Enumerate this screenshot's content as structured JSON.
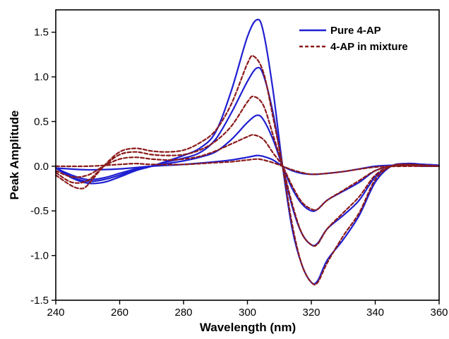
{
  "chart_data": {
    "type": "line",
    "xlabel": "Wavelength (nm)",
    "ylabel": "Peak Amplitude",
    "xlim": [
      240,
      360
    ],
    "ylim": [
      -1.5,
      1.75
    ],
    "xticks": [
      240,
      260,
      280,
      300,
      320,
      340,
      360
    ],
    "yticks": [
      -1.5,
      -1.0,
      -0.5,
      0.0,
      0.5,
      1.0,
      1.5
    ],
    "ytick_labels": [
      "-1.5",
      "-1.0",
      "-0.5",
      "0.0",
      "0.5",
      "1.0",
      "1.5"
    ],
    "grid": false,
    "legend_position": "top-right",
    "legend": [
      {
        "label": "Pure 4-AP",
        "color": "#1f1fd1",
        "style": "solid"
      },
      {
        "label": "4-AP in mixture",
        "color": "#8b1a1a",
        "style": "dashed"
      }
    ],
    "series": [
      {
        "group": "Pure 4-AP",
        "color": "#1f1fd1",
        "style": "solid",
        "x": [
          240,
          250,
          260,
          270,
          280,
          290,
          295,
          300,
          303,
          305,
          308,
          311,
          314,
          317,
          320,
          322,
          325,
          330,
          335,
          340,
          345,
          350,
          355,
          360
        ],
        "y": [
          -0.02,
          -0.04,
          -0.03,
          0.0,
          0.02,
          0.05,
          0.07,
          0.1,
          0.12,
          0.11,
          0.07,
          0.0,
          -0.05,
          -0.08,
          -0.09,
          -0.09,
          -0.08,
          -0.06,
          -0.03,
          0.0,
          0.01,
          0.01,
          0.0,
          0.0
        ]
      },
      {
        "group": "Pure 4-AP",
        "color": "#1f1fd1",
        "style": "solid",
        "x": [
          240,
          245,
          250,
          255,
          260,
          265,
          270,
          275,
          280,
          285,
          290,
          295,
          300,
          303,
          305,
          308,
          311,
          314,
          317,
          320,
          322,
          325,
          330,
          335,
          340,
          345,
          350,
          355,
          360
        ],
        "y": [
          -0.02,
          -0.1,
          -0.15,
          -0.13,
          -0.08,
          -0.03,
          0.0,
          0.03,
          0.06,
          0.1,
          0.16,
          0.3,
          0.49,
          0.57,
          0.52,
          0.3,
          0.0,
          -0.25,
          -0.42,
          -0.5,
          -0.48,
          -0.38,
          -0.28,
          -0.18,
          -0.05,
          0.0,
          0.02,
          0.02,
          0.01
        ]
      },
      {
        "group": "Pure 4-AP",
        "color": "#1f1fd1",
        "style": "solid",
        "x": [
          240,
          245,
          250,
          255,
          260,
          265,
          270,
          275,
          280,
          285,
          290,
          295,
          300,
          303,
          305,
          308,
          311,
          314,
          317,
          320,
          322,
          325,
          330,
          335,
          340,
          345,
          350,
          355,
          360
        ],
        "y": [
          -0.02,
          -0.12,
          -0.17,
          -0.15,
          -0.1,
          -0.04,
          0.0,
          0.05,
          0.09,
          0.15,
          0.3,
          0.6,
          0.95,
          1.1,
          1.02,
          0.6,
          0.0,
          -0.45,
          -0.75,
          -0.88,
          -0.86,
          -0.7,
          -0.55,
          -0.38,
          -0.12,
          0.0,
          0.03,
          0.02,
          0.01
        ]
      },
      {
        "group": "Pure 4-AP",
        "color": "#1f1fd1",
        "style": "solid",
        "x": [
          240,
          245,
          250,
          255,
          260,
          265,
          270,
          275,
          280,
          285,
          290,
          295,
          300,
          303,
          305,
          308,
          311,
          314,
          317,
          320,
          322,
          325,
          330,
          335,
          340,
          345,
          350,
          355,
          360
        ],
        "y": [
          -0.02,
          -0.13,
          -0.19,
          -0.18,
          -0.12,
          -0.05,
          0.0,
          0.06,
          0.12,
          0.2,
          0.38,
          0.85,
          1.45,
          1.64,
          1.5,
          0.85,
          0.0,
          -0.7,
          -1.1,
          -1.3,
          -1.28,
          -1.05,
          -0.82,
          -0.55,
          -0.18,
          0.0,
          0.03,
          0.02,
          0.01
        ]
      },
      {
        "group": "4-AP in mixture",
        "color": "#8b1a1a",
        "style": "dashed",
        "x": [
          240,
          250,
          260,
          265,
          270,
          280,
          290,
          295,
          300,
          303,
          305,
          308,
          311,
          314,
          317,
          320,
          325,
          330,
          340,
          350,
          360
        ],
        "y": [
          0.0,
          0.0,
          0.02,
          0.03,
          0.02,
          0.02,
          0.04,
          0.05,
          0.07,
          0.08,
          0.07,
          0.04,
          0.0,
          -0.04,
          -0.07,
          -0.09,
          -0.08,
          -0.06,
          -0.01,
          0.0,
          0.0
        ]
      },
      {
        "group": "4-AP in mixture",
        "color": "#8b1a1a",
        "style": "dashed",
        "x": [
          240,
          245,
          250,
          255,
          260,
          265,
          270,
          275,
          280,
          285,
          290,
          295,
          300,
          302,
          305,
          308,
          311,
          314,
          317,
          320,
          322,
          325,
          330,
          335,
          340,
          345,
          350,
          355,
          360
        ],
        "y": [
          -0.05,
          -0.12,
          -0.1,
          0.0,
          0.08,
          0.1,
          0.08,
          0.07,
          0.08,
          0.11,
          0.17,
          0.25,
          0.33,
          0.35,
          0.3,
          0.15,
          0.0,
          -0.22,
          -0.4,
          -0.48,
          -0.48,
          -0.38,
          -0.27,
          -0.16,
          -0.05,
          0.0,
          0.01,
          0.01,
          0.0
        ]
      },
      {
        "group": "4-AP in mixture",
        "color": "#8b1a1a",
        "style": "dashed",
        "x": [
          240,
          245,
          250,
          255,
          260,
          265,
          270,
          275,
          280,
          285,
          290,
          295,
          300,
          302,
          305,
          308,
          311,
          314,
          317,
          320,
          322,
          325,
          330,
          335,
          340,
          345,
          350,
          355,
          360
        ],
        "y": [
          -0.07,
          -0.18,
          -0.16,
          0.0,
          0.13,
          0.16,
          0.13,
          0.12,
          0.13,
          0.18,
          0.28,
          0.45,
          0.72,
          0.78,
          0.68,
          0.35,
          0.0,
          -0.42,
          -0.75,
          -0.88,
          -0.87,
          -0.7,
          -0.52,
          -0.34,
          -0.1,
          0.0,
          0.02,
          0.01,
          0.0
        ]
      },
      {
        "group": "4-AP in mixture",
        "color": "#8b1a1a",
        "style": "dashed",
        "x": [
          240,
          245,
          248,
          250,
          255,
          260,
          265,
          270,
          275,
          280,
          285,
          290,
          295,
          300,
          302,
          305,
          308,
          311,
          314,
          317,
          320,
          322,
          325,
          330,
          335,
          340,
          345,
          350,
          355,
          360
        ],
        "y": [
          -0.1,
          -0.22,
          -0.25,
          -0.21,
          0.0,
          0.16,
          0.2,
          0.17,
          0.16,
          0.18,
          0.26,
          0.4,
          0.7,
          1.15,
          1.23,
          1.05,
          0.55,
          0.0,
          -0.65,
          -1.1,
          -1.3,
          -1.3,
          -1.08,
          -0.78,
          -0.52,
          -0.15,
          0.0,
          0.02,
          0.01,
          0.0
        ]
      }
    ]
  }
}
